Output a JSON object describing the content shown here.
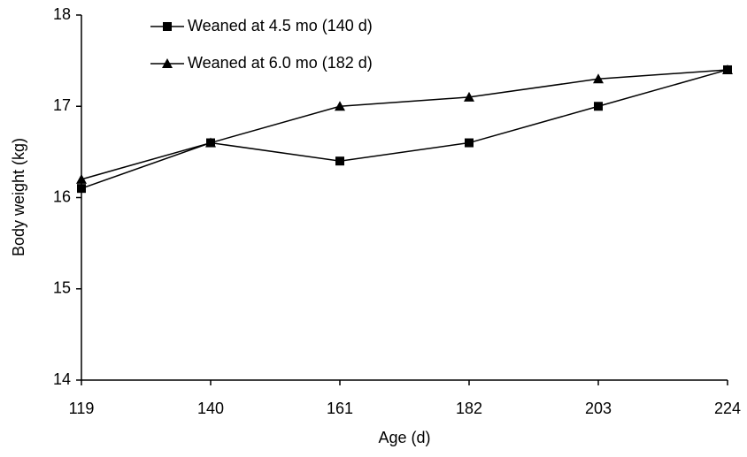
{
  "chart_data": {
    "type": "line",
    "x_label": "Age (d)",
    "y_label": "Body weight (kg)",
    "x": [
      119,
      140,
      161,
      182,
      203,
      224
    ],
    "series": [
      {
        "name": "Weaned at 4.5 mo (140 d)",
        "color": "#000000",
        "marker": "square",
        "values": [
          16.1,
          16.6,
          16.4,
          16.6,
          17.0,
          17.4
        ]
      },
      {
        "name": "Weaned at 6.0 mo (182 d)",
        "color": "#000000",
        "marker": "triangle",
        "values": [
          16.2,
          16.6,
          17.0,
          17.1,
          17.3,
          17.4
        ]
      }
    ],
    "xlim": [
      119,
      224
    ],
    "xticks": [
      119,
      140,
      161,
      182,
      203,
      224
    ],
    "ylim": [
      14,
      18
    ],
    "yticks": [
      14,
      15,
      16,
      17,
      18
    ],
    "grid": false,
    "legend": "top-left"
  }
}
